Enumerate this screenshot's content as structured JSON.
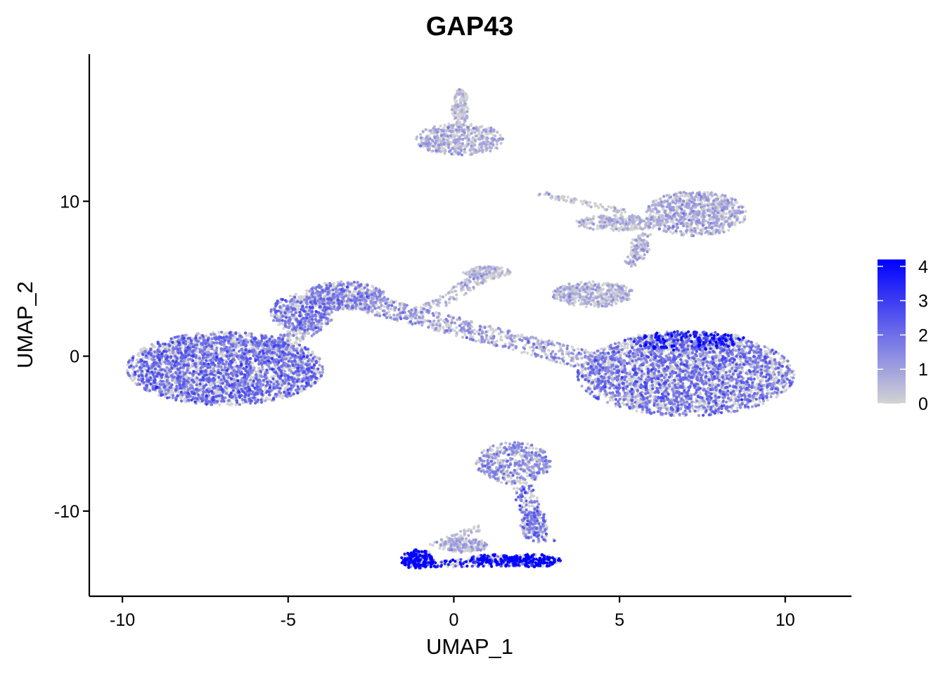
{
  "chart_data": {
    "type": "scatter",
    "title": "GAP43",
    "xlabel": "UMAP_1",
    "ylabel": "UMAP_2",
    "xlim": [
      -11,
      12
    ],
    "ylim": [
      -15.5,
      19.5
    ],
    "x_ticks": [
      -10,
      -5,
      0,
      5,
      10
    ],
    "x_tick_labels": [
      "-10",
      "-5",
      "0",
      "5",
      "10"
    ],
    "y_ticks": [
      -10,
      0,
      10
    ],
    "y_tick_labels": [
      "-10",
      "0",
      "10"
    ],
    "grid": false,
    "point_color_low": "#d3d3d3",
    "point_color_high": "#0000ff",
    "color_scale": {
      "min": 0,
      "max": 4.2,
      "ticks": [
        0,
        1,
        2,
        3,
        4
      ],
      "tick_labels": [
        "0",
        "1",
        "2",
        "3",
        "4"
      ],
      "legend_position": "right"
    },
    "clusters": [
      {
        "cx": -6.9,
        "cy": -0.8,
        "rx": 2.9,
        "ry": 2.3,
        "expr": 1.3,
        "weight": 0.22
      },
      {
        "cx": -4.6,
        "cy": 2.8,
        "rx": 0.9,
        "ry": 1.2,
        "expr": 1.2,
        "weight": 0.03
      },
      {
        "cx": -3.3,
        "cy": 3.9,
        "rx": 1.2,
        "ry": 0.9,
        "expr": 1.0,
        "weight": 0.04
      },
      {
        "cx": 7.0,
        "cy": -1.2,
        "rx": 3.2,
        "ry": 2.6,
        "expr": 1.2,
        "weight": 0.23
      },
      {
        "cx": 7.0,
        "cy": 1.0,
        "rx": 1.8,
        "ry": 0.6,
        "expr": 2.4,
        "weight": 0.03
      },
      {
        "cx": 0.2,
        "cy": 14.0,
        "rx": 1.3,
        "ry": 1.0,
        "expr": 0.5,
        "weight": 0.035
      },
      {
        "cx": 0.2,
        "cy": 16.0,
        "rx": 0.25,
        "ry": 1.2,
        "expr": 0.3,
        "weight": 0.01
      },
      {
        "cx": 7.3,
        "cy": 9.2,
        "rx": 1.5,
        "ry": 1.4,
        "expr": 0.6,
        "weight": 0.06
      },
      {
        "cx": 5.0,
        "cy": 8.6,
        "rx": 1.3,
        "ry": 0.5,
        "expr": 0.4,
        "weight": 0.02
      },
      {
        "cx": 5.6,
        "cy": 7.0,
        "rx": 0.3,
        "ry": 0.8,
        "expr": 0.5,
        "weight": 0.006
      },
      {
        "cx": 4.2,
        "cy": 4.0,
        "rx": 1.2,
        "ry": 0.8,
        "expr": 0.5,
        "weight": 0.03
      },
      {
        "cx": 1.0,
        "cy": 5.4,
        "rx": 0.7,
        "ry": 0.4,
        "expr": 0.3,
        "weight": 0.01
      },
      {
        "cx": 1.8,
        "cy": -6.9,
        "rx": 1.1,
        "ry": 1.3,
        "expr": 0.9,
        "weight": 0.035
      },
      {
        "cx": 2.4,
        "cy": -10.9,
        "rx": 0.4,
        "ry": 1.0,
        "expr": 1.0,
        "weight": 0.01
      },
      {
        "cx": -1.1,
        "cy": -13.1,
        "rx": 0.5,
        "ry": 0.6,
        "expr": 3.2,
        "weight": 0.018
      },
      {
        "cx": 2.4,
        "cy": -13.2,
        "rx": 0.8,
        "ry": 0.4,
        "expr": 3.2,
        "weight": 0.016
      },
      {
        "cx": 1.1,
        "cy": -13.1,
        "rx": 0.7,
        "ry": 0.3,
        "expr": 2.8,
        "weight": 0.01
      },
      {
        "cx": 0.3,
        "cy": -12.2,
        "rx": 0.7,
        "ry": 0.5,
        "expr": 0.6,
        "weight": 0.012
      }
    ],
    "bridges": [
      {
        "x0": -2.6,
        "y0": 3.4,
        "x1": 5.0,
        "y1": -0.8,
        "width": 0.55,
        "expr": 0.8,
        "weight": 0.05
      },
      {
        "x0": -5.6,
        "y0": 0.2,
        "x1": -3.9,
        "y1": 2.5,
        "width": 0.4,
        "expr": 0.9,
        "weight": 0.012
      },
      {
        "x0": -0.7,
        "y0": 3.1,
        "x1": 0.9,
        "y1": 5.2,
        "width": 0.3,
        "expr": 0.4,
        "weight": 0.008
      },
      {
        "x0": 2.6,
        "y0": 10.5,
        "x1": 5.2,
        "y1": 9.3,
        "width": 0.15,
        "expr": 0.3,
        "weight": 0.006
      },
      {
        "x0": 5.8,
        "y0": 7.9,
        "x1": 5.3,
        "y1": 5.8,
        "width": 0.2,
        "expr": 0.5,
        "weight": 0.004
      },
      {
        "x0": 2.0,
        "y0": -8.2,
        "x1": 2.7,
        "y1": -12.0,
        "width": 0.35,
        "expr": 1.3,
        "weight": 0.012
      },
      {
        "x0": -1.4,
        "y0": -13.4,
        "x1": 2.6,
        "y1": -13.3,
        "width": 0.25,
        "expr": 2.6,
        "weight": 0.014
      },
      {
        "x0": -0.6,
        "y0": -12.3,
        "x1": 0.8,
        "y1": -11.0,
        "width": 0.2,
        "expr": 0.4,
        "weight": 0.004
      }
    ]
  }
}
